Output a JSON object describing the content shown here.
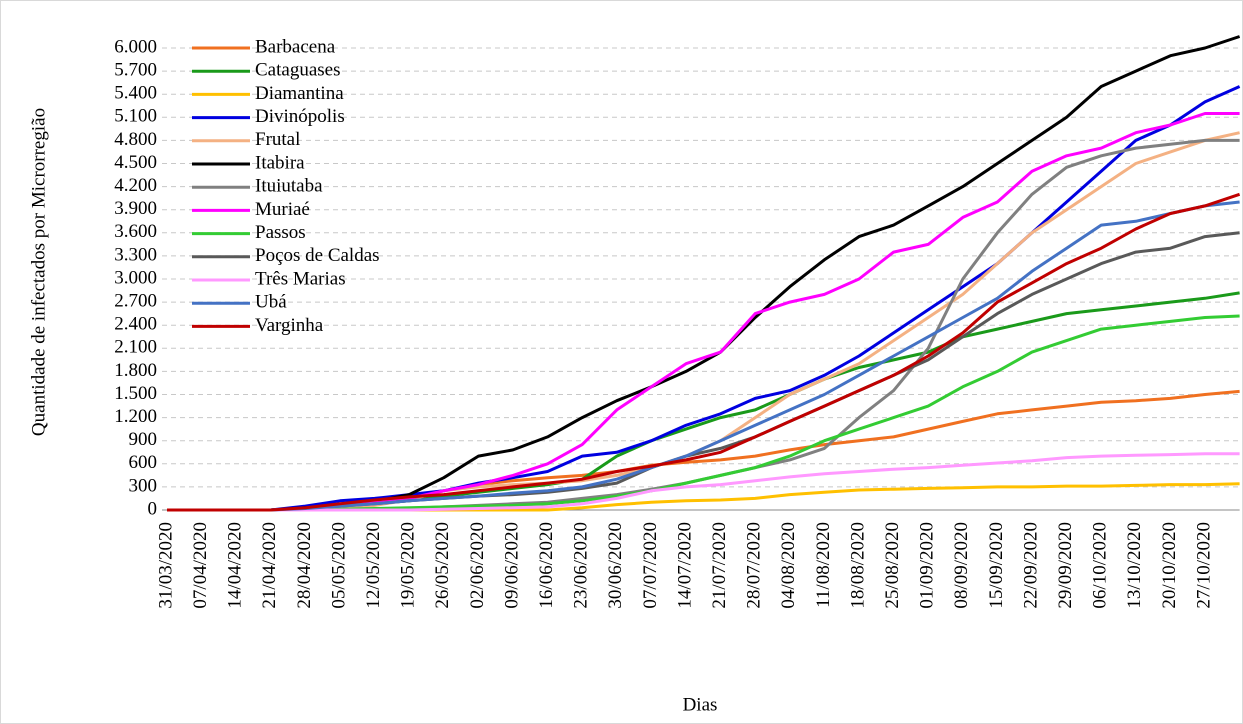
{
  "chart_data": {
    "type": "line",
    "y_label": "Quantidade de infectados por Microrregião",
    "x_label": "Dias",
    "categories": [
      "31/03/2020",
      "07/04/2020",
      "14/04/2020",
      "21/04/2020",
      "28/04/2020",
      "05/05/2020",
      "12/05/2020",
      "19/05/2020",
      "26/05/2020",
      "02/06/2020",
      "09/06/2020",
      "16/06/2020",
      "23/06/2020",
      "30/06/2020",
      "07/07/2020",
      "14/07/2020",
      "21/07/2020",
      "28/07/2020",
      "04/08/2020",
      "11/08/2020",
      "18/08/2020",
      "25/08/2020",
      "01/09/2020",
      "08/09/2020",
      "15/09/2020",
      "22/09/2020",
      "29/09/2020",
      "06/10/2020",
      "13/10/2020",
      "20/10/2020",
      "27/10/2020",
      null
    ],
    "ylim": [
      0,
      6000
    ],
    "yticks": [
      0,
      300,
      600,
      900,
      {
        "value": 1200,
        "label": "1.200"
      },
      {
        "value": 1500,
        "label": "1.500"
      },
      {
        "value": 1800,
        "label": "1.800"
      },
      {
        "value": 2100,
        "label": "2.100"
      },
      {
        "value": 2400,
        "label": "2.400"
      },
      {
        "value": 2700,
        "label": "2.700"
      },
      {
        "value": 3000,
        "label": "3.000"
      },
      {
        "value": 3300,
        "label": "3.300"
      },
      {
        "value": 3600,
        "label": "3.600"
      },
      {
        "value": 3900,
        "label": "3.900"
      },
      {
        "value": 4200,
        "label": "4.200"
      },
      {
        "value": 4500,
        "label": "4.500"
      },
      {
        "value": 4800,
        "label": "4.800"
      },
      {
        "value": 5100,
        "label": "5.100"
      },
      {
        "value": 5400,
        "label": "5.400"
      },
      {
        "value": 5700,
        "label": "5.700"
      },
      {
        "value": 6000,
        "label": "6.000"
      }
    ],
    "grid": true,
    "legend": "top-left",
    "series": [
      {
        "name": "Barbacena",
        "color": "#f07020",
        "values": [
          0,
          0,
          0,
          0,
          20,
          60,
          100,
          150,
          250,
          330,
          380,
          420,
          450,
          500,
          580,
          620,
          650,
          700,
          780,
          850,
          900,
          950,
          1050,
          1150,
          1250,
          1300,
          1350,
          1400,
          1420,
          1450,
          1500,
          1540
        ]
      },
      {
        "name": "Cataguases",
        "color": "#1a9a1a",
        "values": [
          0,
          0,
          0,
          0,
          20,
          50,
          80,
          120,
          180,
          230,
          280,
          330,
          400,
          700,
          900,
          1050,
          1200,
          1300,
          1500,
          1700,
          1850,
          1950,
          2050,
          2250,
          2350,
          2450,
          2550,
          2600,
          2650,
          2700,
          2750,
          2820
        ]
      },
      {
        "name": "Diamantina",
        "color": "#ffc000",
        "values": [
          0,
          0,
          0,
          0,
          0,
          0,
          0,
          0,
          0,
          0,
          0,
          0,
          30,
          70,
          100,
          120,
          130,
          150,
          200,
          230,
          260,
          270,
          280,
          290,
          300,
          300,
          310,
          310,
          320,
          330,
          330,
          340
        ]
      },
      {
        "name": "Divinópolis",
        "color": "#0000e0",
        "values": [
          0,
          0,
          0,
          0,
          50,
          120,
          150,
          200,
          250,
          350,
          420,
          500,
          700,
          750,
          900,
          1100,
          1250,
          1450,
          1550,
          1750,
          2000,
          2300,
          2600,
          2900,
          3200,
          3600,
          4000,
          4400,
          4800,
          5000,
          5300,
          5500
        ]
      },
      {
        "name": "Frutal",
        "color": "#f4b183",
        "values": [
          0,
          0,
          0,
          0,
          0,
          20,
          60,
          130,
          250,
          300,
          330,
          350,
          380,
          450,
          550,
          700,
          900,
          1200,
          1500,
          1700,
          1900,
          2200,
          2500,
          2800,
          3200,
          3600,
          3900,
          4200,
          4500,
          4650,
          4800,
          4900
        ]
      },
      {
        "name": "Itabira",
        "color": "#000000",
        "values": [
          0,
          0,
          0,
          0,
          30,
          60,
          110,
          200,
          420,
          700,
          780,
          950,
          1200,
          1420,
          1600,
          1800,
          2050,
          2500,
          2900,
          3250,
          3550,
          3700,
          3950,
          4200,
          4500,
          4800,
          5100,
          5500,
          5700,
          5900,
          6000,
          6150
        ]
      },
      {
        "name": "Ituiutaba",
        "color": "#808080",
        "values": [
          0,
          0,
          0,
          0,
          0,
          0,
          10,
          20,
          40,
          60,
          80,
          100,
          150,
          200,
          270,
          350,
          450,
          550,
          650,
          800,
          1200,
          1550,
          2100,
          3000,
          3600,
          4100,
          4450,
          4600,
          4700,
          4750,
          4800,
          4800
        ]
      },
      {
        "name": "Muriaé",
        "color": "#ff00ff",
        "values": [
          0,
          0,
          0,
          0,
          20,
          60,
          100,
          150,
          250,
          330,
          450,
          600,
          850,
          1300,
          1600,
          1900,
          2050,
          2550,
          2700,
          2800,
          3000,
          3350,
          3450,
          3800,
          4000,
          4400,
          4600,
          4700,
          4900,
          5000,
          5150,
          5150
        ]
      },
      {
        "name": "Passos",
        "color": "#33cc33",
        "values": [
          0,
          0,
          0,
          0,
          0,
          10,
          20,
          30,
          40,
          50,
          60,
          80,
          120,
          180,
          250,
          350,
          450,
          550,
          700,
          900,
          1050,
          1200,
          1350,
          1600,
          1800,
          2050,
          2200,
          2350,
          2400,
          2450,
          2500,
          2520
        ]
      },
      {
        "name": "Poços de Caldas",
        "color": "#595959",
        "values": [
          0,
          0,
          0,
          0,
          20,
          50,
          80,
          120,
          150,
          180,
          200,
          230,
          280,
          350,
          550,
          700,
          800,
          950,
          1150,
          1350,
          1550,
          1750,
          1950,
          2250,
          2550,
          2800,
          3000,
          3200,
          3350,
          3400,
          3550,
          3600
        ]
      },
      {
        "name": "Três Marias",
        "color": "#ff99ff",
        "values": [
          0,
          0,
          0,
          0,
          0,
          0,
          0,
          0,
          10,
          20,
          30,
          40,
          80,
          150,
          250,
          300,
          330,
          380,
          430,
          470,
          500,
          530,
          550,
          580,
          610,
          640,
          680,
          700,
          710,
          720,
          730,
          730
        ]
      },
      {
        "name": "Ubá",
        "color": "#4472c4",
        "values": [
          0,
          0,
          0,
          0,
          20,
          50,
          80,
          120,
          150,
          180,
          220,
          250,
          300,
          400,
          550,
          700,
          900,
          1100,
          1300,
          1500,
          1750,
          2000,
          2250,
          2500,
          2750,
          3100,
          3400,
          3700,
          3750,
          3850,
          3950,
          4000
        ]
      },
      {
        "name": "Varginha",
        "color": "#c00000",
        "values": [
          0,
          0,
          0,
          0,
          30,
          80,
          130,
          170,
          200,
          250,
          300,
          350,
          400,
          500,
          570,
          650,
          750,
          950,
          1150,
          1350,
          1550,
          1750,
          2000,
          2300,
          2700,
          2950,
          3200,
          3400,
          3650,
          3850,
          3950,
          4100
        ]
      }
    ]
  }
}
